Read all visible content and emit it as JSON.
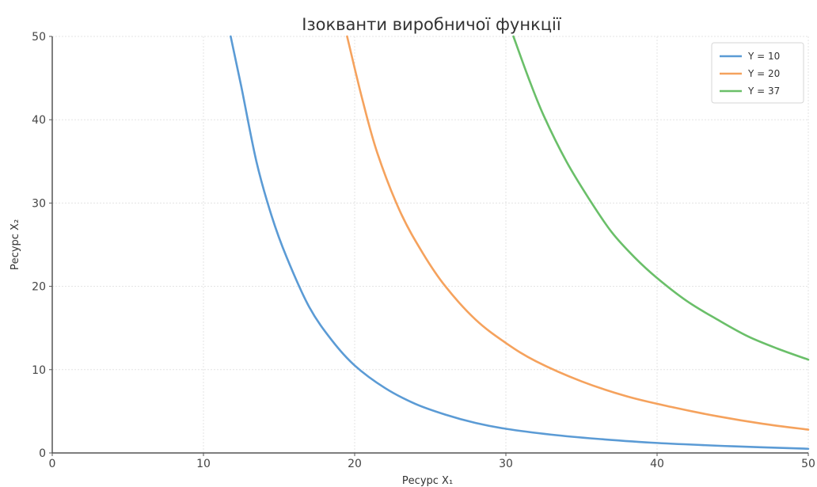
{
  "chart_data": {
    "type": "line",
    "title": "Ізокванти виробничої функції",
    "xlabel": "Ресурс X₁",
    "ylabel": "Ресурс X₂",
    "xlim": [
      0,
      50
    ],
    "ylim": [
      0,
      50
    ],
    "x_ticks": [
      0,
      10,
      20,
      30,
      40,
      50
    ],
    "y_ticks": [
      0,
      10,
      20,
      30,
      40,
      50
    ],
    "grid": true,
    "legend_position": "top-right",
    "series": [
      {
        "name": "Y = 10",
        "color": "#5b9bd5",
        "x": [
          11.8,
          12.5,
          13.5,
          14.5,
          15.5,
          17,
          18.5,
          20,
          22,
          24,
          26,
          28,
          30,
          33,
          36,
          40,
          45,
          50
        ],
        "y": [
          50,
          44,
          35,
          28.5,
          23.5,
          17.5,
          13.5,
          10.5,
          7.8,
          5.9,
          4.6,
          3.6,
          2.9,
          2.2,
          1.7,
          1.2,
          0.8,
          0.5
        ]
      },
      {
        "name": "Y = 20",
        "color": "#f5a25d",
        "x": [
          19.5,
          20.5,
          21.5,
          23,
          24.5,
          26,
          28,
          30,
          32,
          35,
          38,
          41,
          44,
          47,
          50
        ],
        "y": [
          50,
          42.5,
          36,
          29,
          24,
          20,
          16,
          13.2,
          11,
          8.6,
          6.8,
          5.5,
          4.4,
          3.5,
          2.8
        ]
      },
      {
        "name": "Y = 37",
        "color": "#6abf69",
        "x": [
          30.5,
          31.5,
          32.5,
          34,
          35.5,
          37,
          38.5,
          40,
          42,
          44,
          46,
          48,
          50
        ],
        "y": [
          50,
          45,
          40.5,
          35,
          30.5,
          26.5,
          23.5,
          21,
          18.2,
          16,
          14,
          12.5,
          11.2
        ]
      }
    ]
  }
}
